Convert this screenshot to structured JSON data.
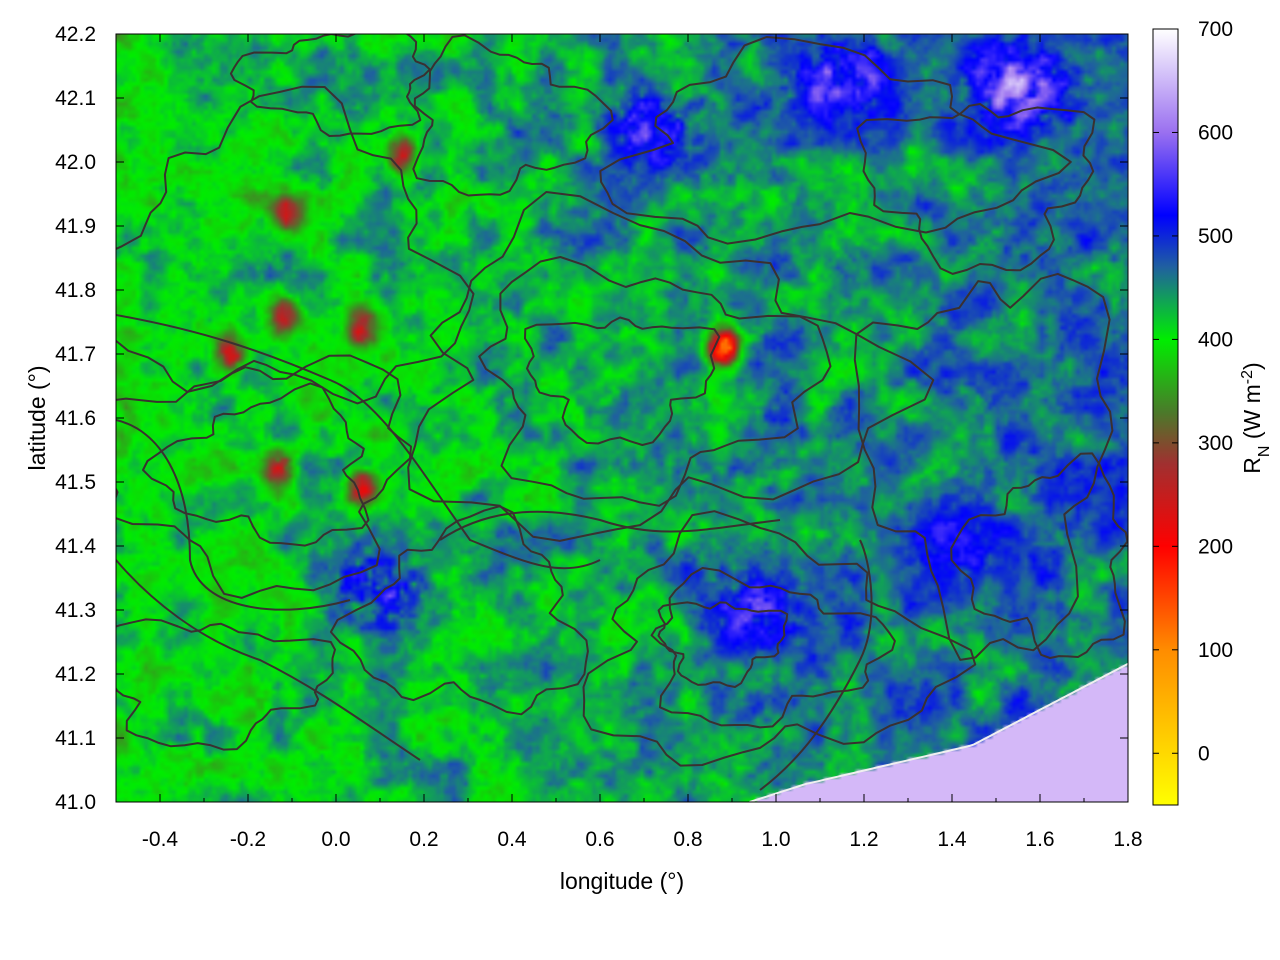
{
  "chart_data": {
    "type": "heatmap",
    "title": "",
    "xlabel": "longitude (°)",
    "ylabel": "latitude (°)",
    "xlim": [
      -0.5,
      1.8
    ],
    "ylim": [
      41.0,
      42.2
    ],
    "x_ticks": [
      "-0.4",
      "-0.2",
      "0.0",
      "0.2",
      "0.4",
      "0.6",
      "0.8",
      "1.0",
      "1.2",
      "1.4",
      "1.6",
      "1.8"
    ],
    "x_tick_values": [
      -0.4,
      -0.2,
      0.0,
      0.2,
      0.4,
      0.6,
      0.8,
      1.0,
      1.2,
      1.4,
      1.6,
      1.8
    ],
    "y_ticks": [
      "41.0",
      "41.1",
      "41.2",
      "41.3",
      "41.4",
      "41.5",
      "41.6",
      "41.7",
      "41.8",
      "41.9",
      "42.0",
      "42.1",
      "42.2"
    ],
    "y_tick_values": [
      41.0,
      41.1,
      41.2,
      41.3,
      41.4,
      41.5,
      41.6,
      41.7,
      41.8,
      41.9,
      42.0,
      42.1,
      42.2
    ],
    "colorbar": {
      "label": "R",
      "label_subscript": "N",
      "label_units_pre": " (W m",
      "label_units_sup": "-2",
      "label_units_post": ")",
      "range": [
        -50,
        700
      ],
      "ticks": [
        "0",
        "100",
        "200",
        "300",
        "400",
        "500",
        "600",
        "700"
      ],
      "tick_values": [
        0,
        100,
        200,
        300,
        400,
        500,
        600,
        700
      ],
      "palette": [
        {
          "value": -50,
          "color": "#ffff00"
        },
        {
          "value": 100,
          "color": "#ff8c00"
        },
        {
          "value": 200,
          "color": "#ff0000"
        },
        {
          "value": 280,
          "color": "#a03030"
        },
        {
          "value": 330,
          "color": "#4a7a2a"
        },
        {
          "value": 400,
          "color": "#00ee00"
        },
        {
          "value": 470,
          "color": "#2060a0"
        },
        {
          "value": 520,
          "color": "#0000ff"
        },
        {
          "value": 600,
          "color": "#9a70f0"
        },
        {
          "value": 700,
          "color": "#ffffff"
        }
      ]
    },
    "sea_color": "#d4b8f8",
    "contour_color": "#3a3030",
    "hotspots": [
      {
        "lon": -0.11,
        "lat": 41.92,
        "value": 240
      },
      {
        "lon": -0.12,
        "lat": 41.76,
        "value": 240
      },
      {
        "lon": 0.06,
        "lat": 41.74,
        "value": 230
      },
      {
        "lon": -0.13,
        "lat": 41.52,
        "value": 230
      },
      {
        "lon": 0.06,
        "lat": 41.49,
        "value": 220
      },
      {
        "lon": 0.88,
        "lat": 41.71,
        "value": 120
      },
      {
        "lon": 0.15,
        "lat": 42.01,
        "value": 240
      },
      {
        "lon": -0.24,
        "lat": 41.7,
        "value": 240
      }
    ],
    "high_zones": [
      {
        "lon": 1.55,
        "lat": 42.12,
        "value": 660
      },
      {
        "lon": 1.15,
        "lat": 42.13,
        "value": 620
      },
      {
        "lon": 0.72,
        "lat": 42.05,
        "value": 590
      },
      {
        "lon": 0.95,
        "lat": 41.3,
        "value": 600
      },
      {
        "lon": 0.1,
        "lat": 41.33,
        "value": 590
      },
      {
        "lon": 1.4,
        "lat": 41.4,
        "value": 560
      }
    ]
  }
}
